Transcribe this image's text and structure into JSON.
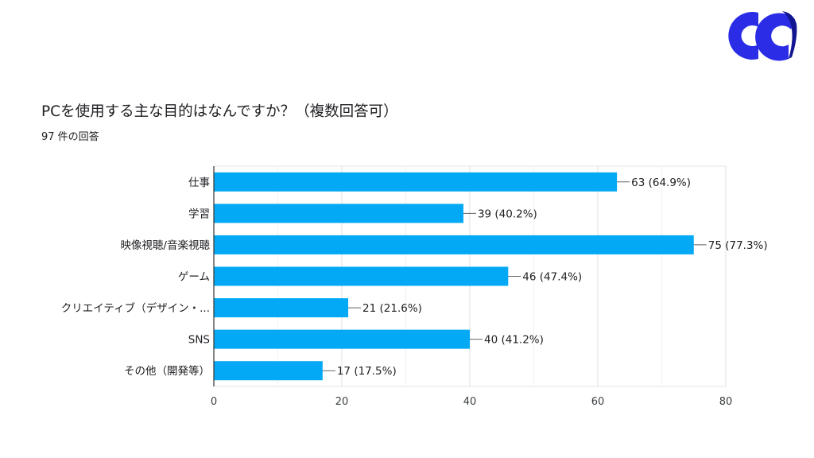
{
  "header": {
    "title": "PCを使用する主な目的はなんですか？（複数回答可）",
    "response_count": "97 件の回答"
  },
  "logo": {
    "icon": "double-c-logo-icon",
    "color_primary": "#2a2ce6",
    "color_secondary": "#11158f"
  },
  "chart_data": {
    "type": "bar",
    "orientation": "horizontal",
    "categories": [
      "仕事",
      "学習",
      "映像視聴/音楽視聴",
      "ゲーム",
      "クリエイティブ（デザイン・...",
      "SNS",
      "その他（開発等）"
    ],
    "values": [
      63,
      39,
      75,
      46,
      21,
      40,
      17
    ],
    "data_labels": [
      "63 (64.9%)",
      "39 (40.2%)",
      "75 (77.3%)",
      "46 (47.4%)",
      "21 (21.6%)",
      "40 (41.2%)",
      "17 (17.5%)"
    ],
    "xlim": [
      0,
      80
    ],
    "xticks": [
      0,
      20,
      40,
      60,
      80
    ],
    "grid": true,
    "bar_color": "#03a9f4"
  }
}
